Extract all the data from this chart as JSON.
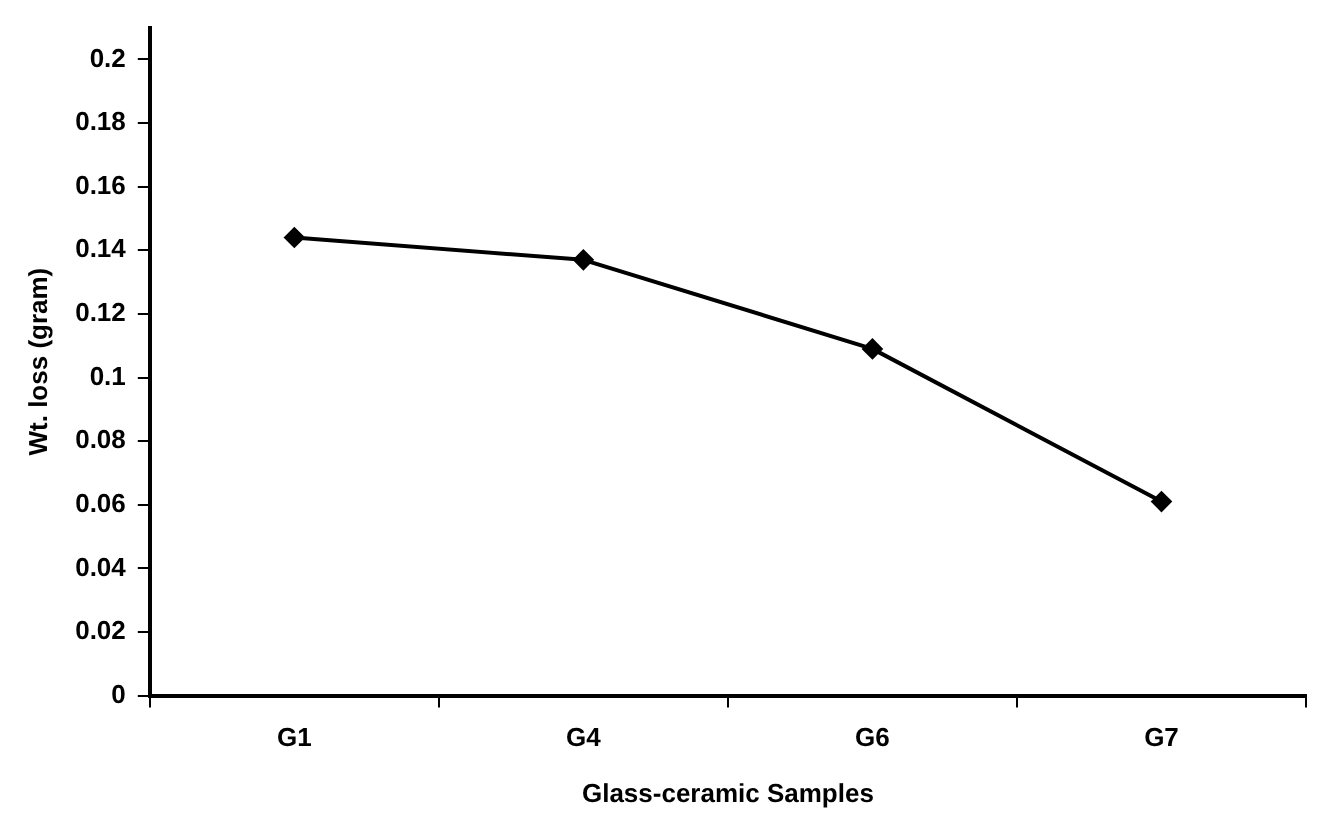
{
  "chart_data": {
    "type": "line",
    "xlabel": "Glass-ceramic Samples",
    "ylabel": "Wt. loss (gram)",
    "categories": [
      "G1",
      "G4",
      "G6",
      "G7"
    ],
    "series": [
      {
        "color": "#000000",
        "values": [
          0.144,
          0.137,
          0.109,
          0.061
        ]
      }
    ],
    "ylim": [
      0,
      0.21
    ],
    "yticks": [
      0,
      0.02,
      0.04,
      0.06,
      0.08,
      0.1,
      0.12,
      0.14,
      0.16,
      0.18,
      0.2
    ],
    "grid": false,
    "legend": false,
    "marker": "diamond",
    "line_style": "solid"
  }
}
